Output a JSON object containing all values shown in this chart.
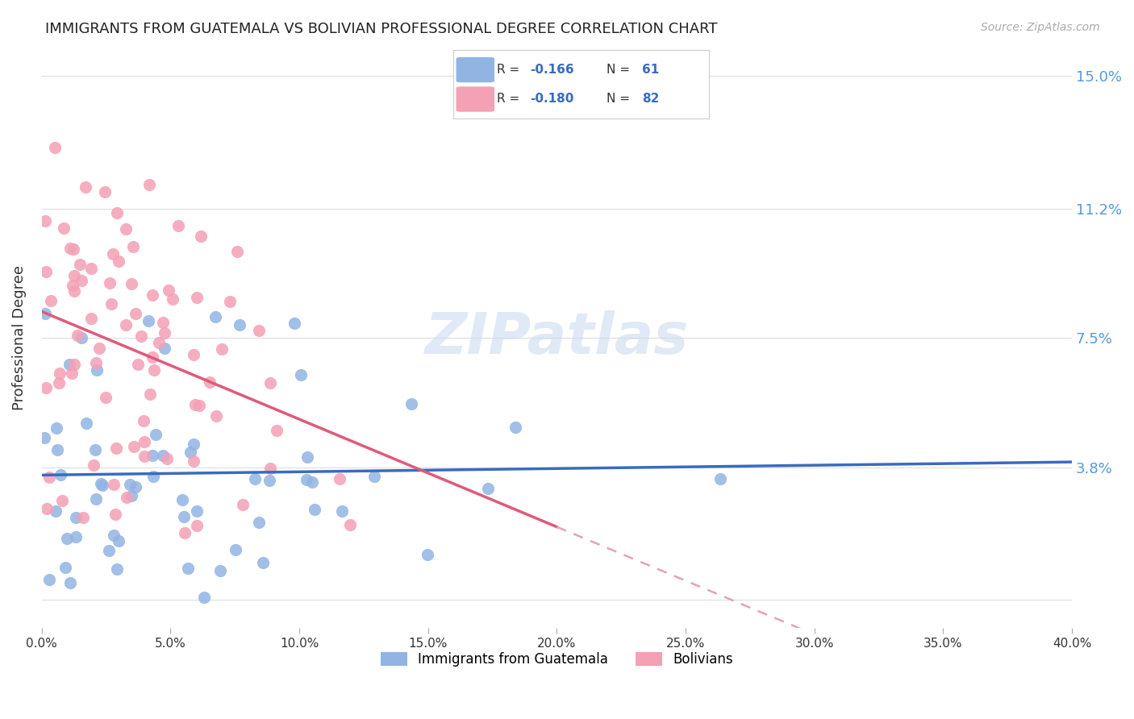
{
  "title": "IMMIGRANTS FROM GUATEMALA VS BOLIVIAN PROFESSIONAL DEGREE CORRELATION CHART",
  "source": "Source: ZipAtlas.com",
  "ylabel": "Professional Degree",
  "y_ticks": [
    0.0,
    0.038,
    0.075,
    0.112,
    0.15
  ],
  "y_tick_labels": [
    "",
    "3.8%",
    "7.5%",
    "11.2%",
    "15.0%"
  ],
  "x_min": 0.0,
  "x_max": 0.4,
  "y_min": -0.008,
  "y_max": 0.158,
  "legend_r1": "-0.166",
  "legend_n1": "61",
  "legend_r2": "-0.180",
  "legend_n2": "82",
  "color_blue": "#92b4e3",
  "color_pink": "#f4a0b5",
  "line_color_blue": "#3a6bbf",
  "line_color_pink": "#e05a7a",
  "line_color_pink_dash": "#e8a0b8",
  "watermark": "ZIPatlas",
  "bg_color": "#ffffff",
  "grid_color": "#dddddd"
}
